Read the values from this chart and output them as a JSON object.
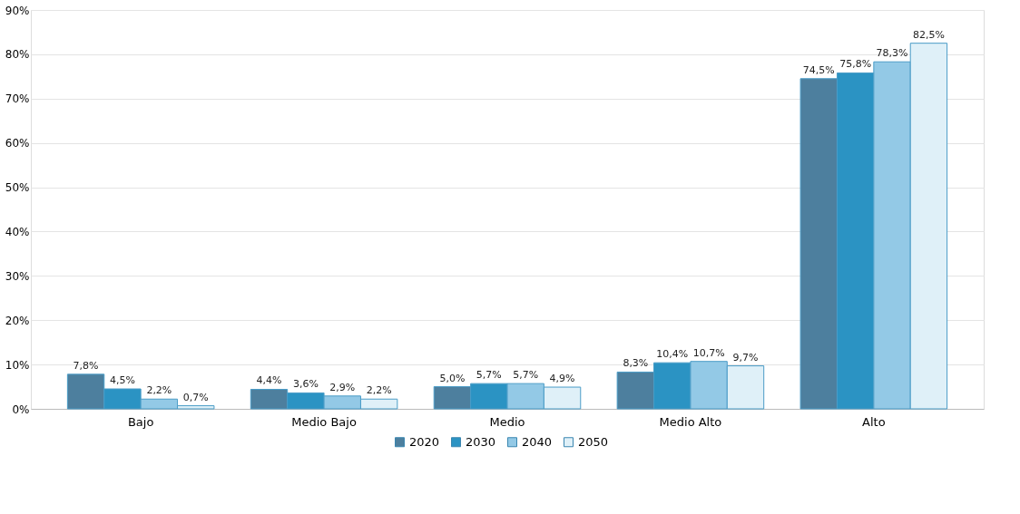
{
  "chart_data": {
    "type": "bar",
    "categories": [
      "Bajo",
      "Medio Bajo",
      "Medio",
      "Medio Alto",
      "Alto"
    ],
    "series": [
      {
        "name": "2020",
        "color": "#4d7f9e",
        "values": [
          7.8,
          4.4,
          5.0,
          8.3,
          74.5
        ],
        "value_labels": [
          "7,8%",
          "4,4%",
          "5,0%",
          "8,3%",
          "74,5%"
        ]
      },
      {
        "name": "2030",
        "color": "#2b93c3",
        "values": [
          4.5,
          3.6,
          5.7,
          10.4,
          75.8
        ],
        "value_labels": [
          "4,5%",
          "3,6%",
          "5,7%",
          "10,4%",
          "75,8%"
        ]
      },
      {
        "name": "2040",
        "color": "#93c9e6",
        "values": [
          2.2,
          2.9,
          5.7,
          10.7,
          78.3
        ],
        "value_labels": [
          "2,2%",
          "2,9%",
          "5,7%",
          "10,7%",
          "78,3%"
        ]
      },
      {
        "name": "2050",
        "color": "#dff0f8",
        "values": [
          0.7,
          2.2,
          4.9,
          9.7,
          82.5
        ],
        "value_labels": [
          "0,7%",
          "2,2%",
          "4,9%",
          "9,7%",
          "82,5%"
        ]
      }
    ],
    "ylim": [
      0,
      90
    ],
    "yticks": [
      {
        "value": 0,
        "label": "0%"
      },
      {
        "value": 10,
        "label": "10%"
      },
      {
        "value": 20,
        "label": "20%"
      },
      {
        "value": 30,
        "label": "30%"
      },
      {
        "value": 40,
        "label": "40%"
      },
      {
        "value": 50,
        "label": "50%"
      },
      {
        "value": 60,
        "label": "60%"
      },
      {
        "value": 70,
        "label": "70%"
      },
      {
        "value": 80,
        "label": "80%"
      },
      {
        "value": 90,
        "label": "90%"
      }
    ],
    "grid": "y",
    "legend": "bottom"
  }
}
